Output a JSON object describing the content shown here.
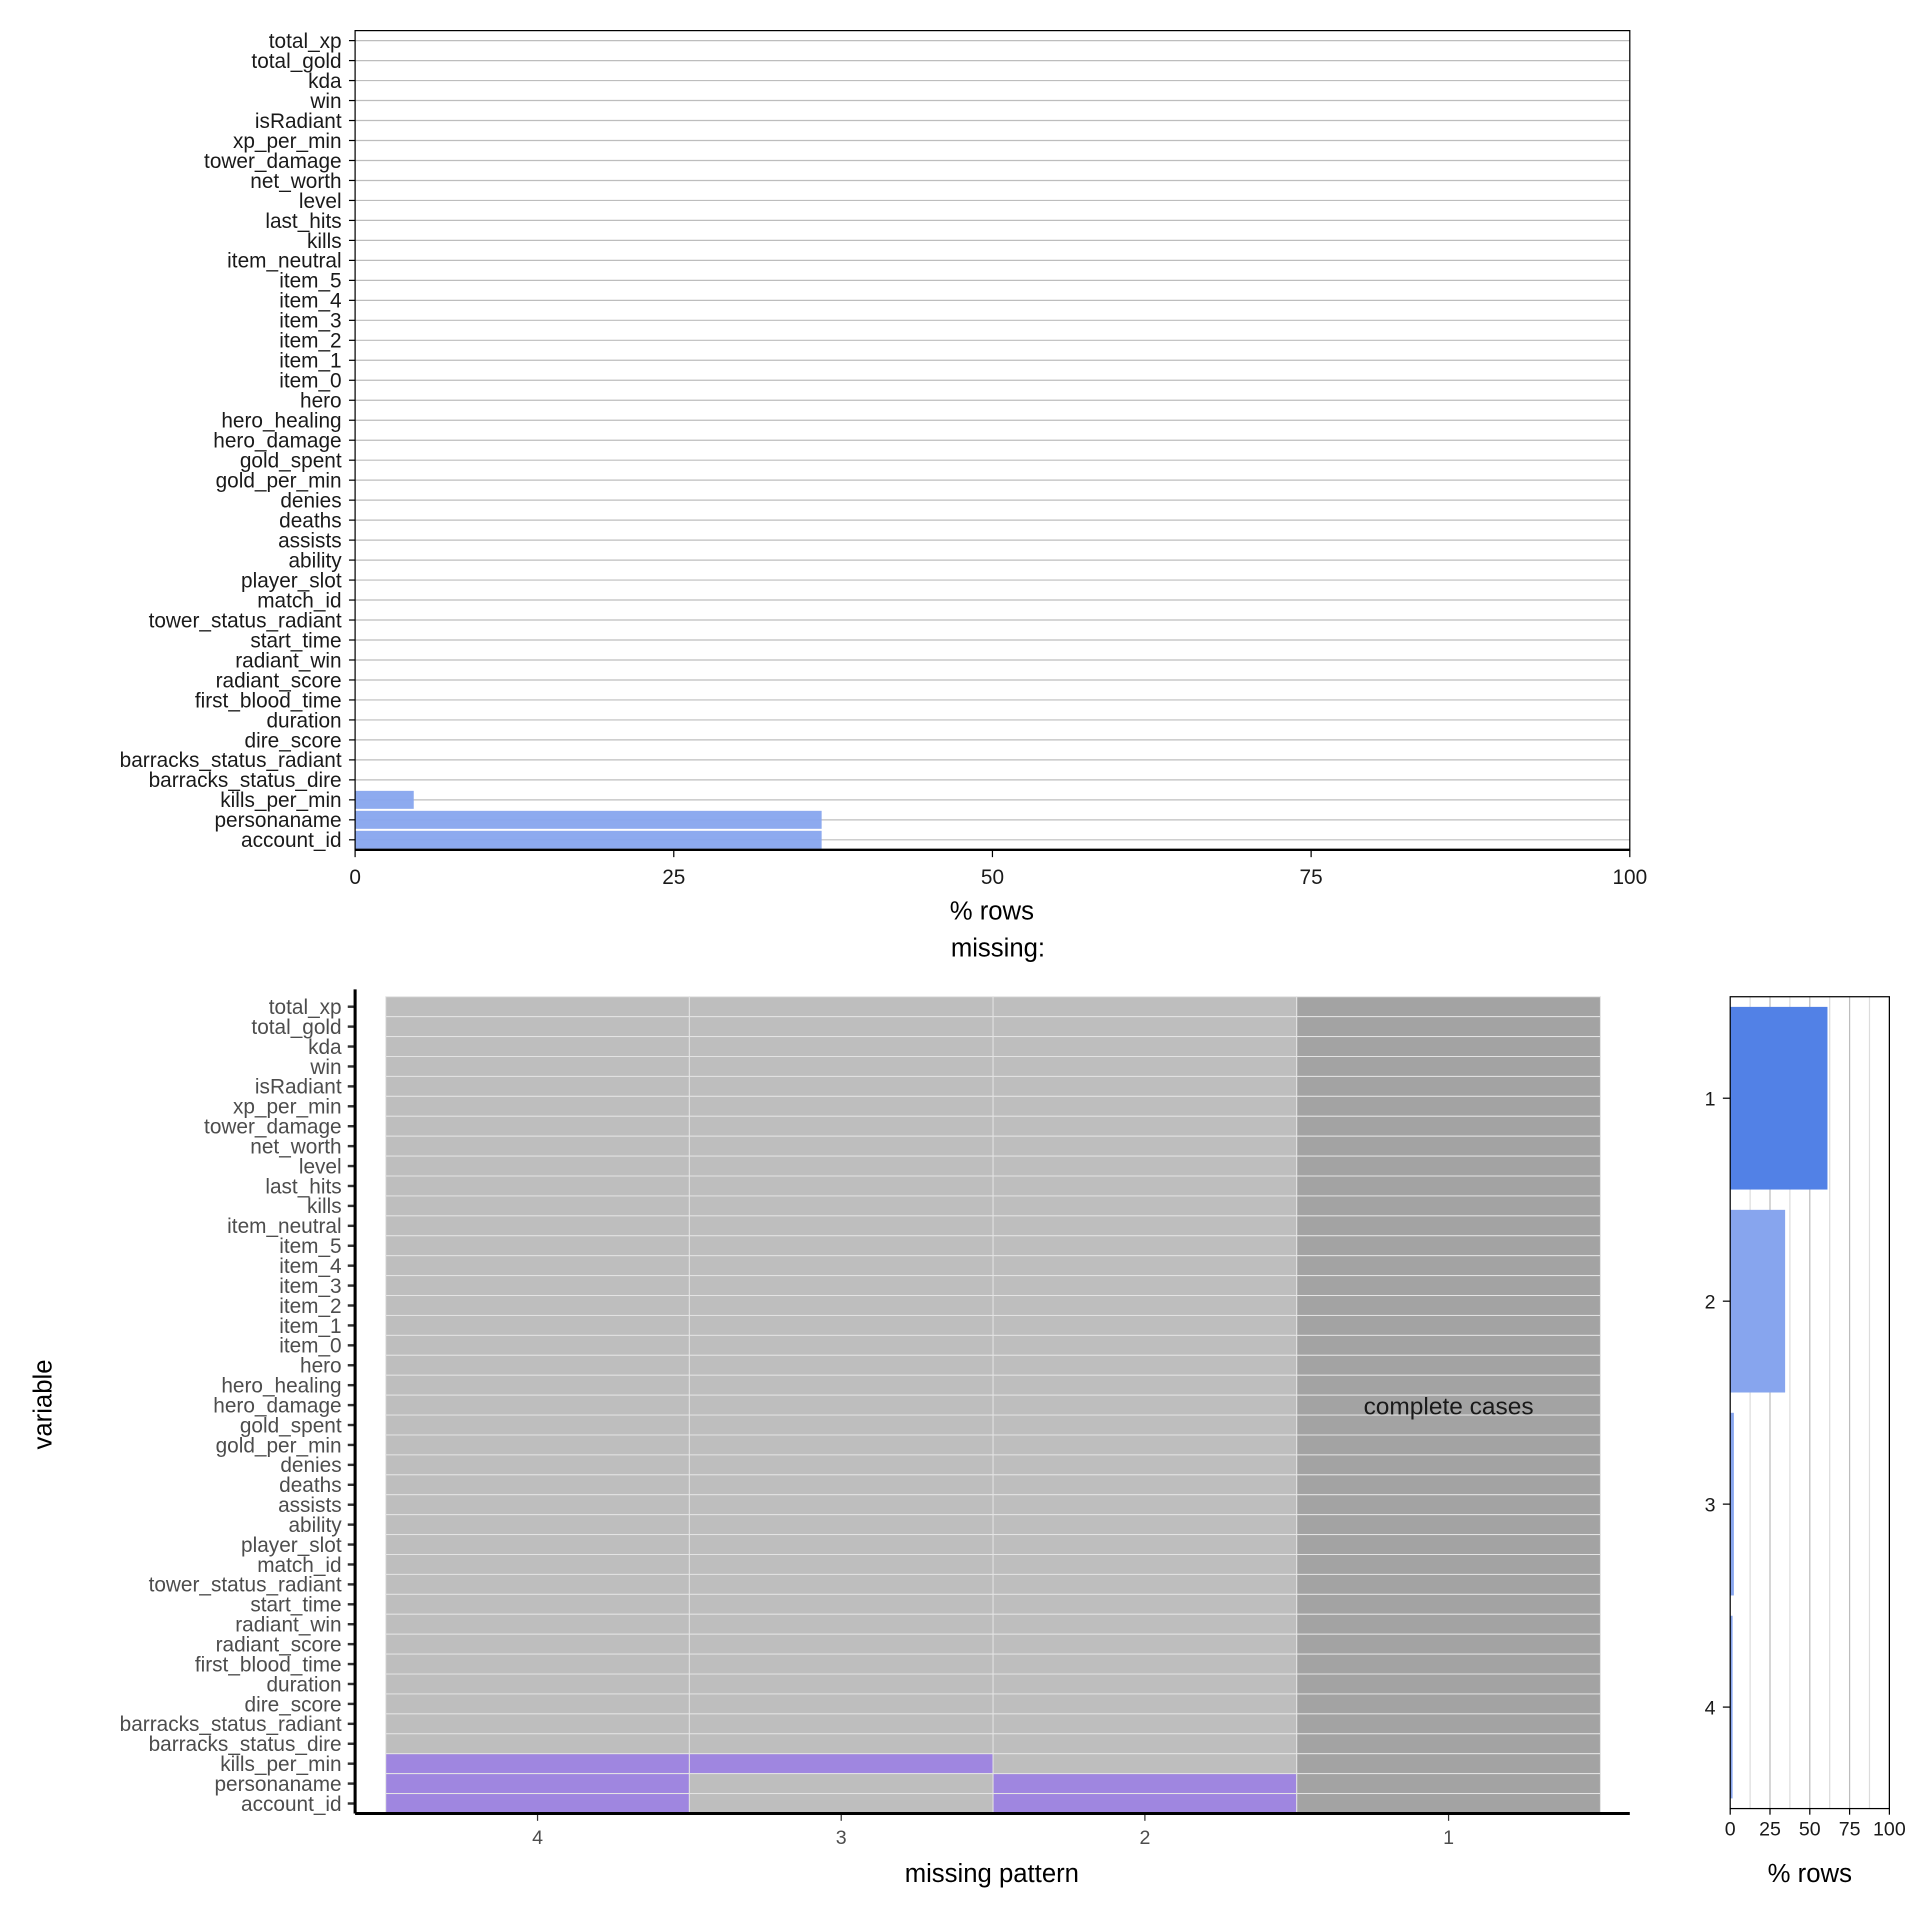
{
  "chart_data": [
    {
      "type": "bar",
      "orientation": "horizontal",
      "categories": [
        "total_xp",
        "total_gold",
        "kda",
        "win",
        "isRadiant",
        "xp_per_min",
        "tower_damage",
        "net_worth",
        "level",
        "last_hits",
        "kills",
        "item_neutral",
        "item_5",
        "item_4",
        "item_3",
        "item_2",
        "item_1",
        "item_0",
        "hero",
        "hero_healing",
        "hero_damage",
        "gold_spent",
        "gold_per_min",
        "denies",
        "deaths",
        "assists",
        "ability",
        "player_slot",
        "match_id",
        "tower_status_radiant",
        "start_time",
        "radiant_win",
        "radiant_score",
        "first_blood_time",
        "duration",
        "dire_score",
        "barracks_status_radiant",
        "barracks_status_dire",
        "kills_per_min",
        "personaname",
        "account_id"
      ],
      "values": [
        0,
        0,
        0,
        0,
        0,
        0,
        0,
        0,
        0,
        0,
        0,
        0,
        0,
        0,
        0,
        0,
        0,
        0,
        0,
        0,
        0,
        0,
        0,
        0,
        0,
        0,
        0,
        0,
        0,
        0,
        0,
        0,
        0,
        0,
        0,
        0,
        0,
        0,
        4.6,
        36.6,
        36.6
      ],
      "xlabel": "% rows",
      "xlim": [
        0,
        100
      ],
      "xticks": [
        "0",
        "25",
        "50",
        "75",
        "100"
      ],
      "grid": "horizontal",
      "bar_color": "#87a5ee"
    },
    {
      "type": "heatmap",
      "title": "missing:",
      "xlabel": "missing pattern",
      "ylabel": "variable",
      "patterns": [
        "4",
        "3",
        "2",
        "1"
      ],
      "missing_by_pattern": {
        "4": [
          "kills_per_min",
          "personaname",
          "account_id"
        ],
        "3": [
          "kills_per_min"
        ],
        "2": [
          "personaname",
          "account_id"
        ],
        "1": []
      },
      "annotation": "complete cases",
      "colors": {
        "missing": "#9f86e0",
        "present": "#bebebe",
        "complete": "#a3a3a3"
      }
    },
    {
      "type": "bar",
      "orientation": "horizontal",
      "categories": [
        "1",
        "2",
        "3",
        "4"
      ],
      "values": [
        61.1,
        34.5,
        2.3,
        1.5
      ],
      "xlabel": "% rows",
      "xlim": [
        0,
        100
      ],
      "xticks": [
        "0",
        "25",
        "50",
        "75",
        "100"
      ],
      "colors": {
        "complete": "#5281e6",
        "incomplete": "#87a5ee"
      }
    }
  ]
}
